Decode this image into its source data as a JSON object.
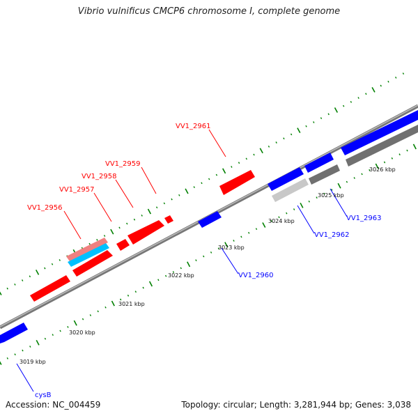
{
  "title": "Vibrio vulnificus CMCP6 chromosome I, complete genome",
  "accession": "Accession: NC_004459",
  "summary": "Topology: circular; Length: 3,281,944 bp; Genes: 3,038",
  "colors": {
    "forward": "#ff0000",
    "reverse": "#0000ff",
    "forward_light": "#f08080",
    "cyan": "#00c0ff",
    "gray_dark": "#707070",
    "gray_light": "#c8c8c8",
    "backbone": "#888888",
    "ticks": "#008000"
  },
  "kbp_labels": [
    "3019 kbp",
    "3020 kbp",
    "3021 kbp",
    "3022 kbp",
    "3023 kbp",
    "3024 kbp",
    "3025 kbp",
    "3026 kbp"
  ],
  "gene_labels": {
    "red": [
      "VV1_2956",
      "VV1_2957",
      "VV1_2958",
      "VV1_2959",
      "VV1_2961"
    ],
    "blue": [
      "cysB",
      "VV1_2960",
      "VV1_2962",
      "VV1_2963"
    ]
  }
}
